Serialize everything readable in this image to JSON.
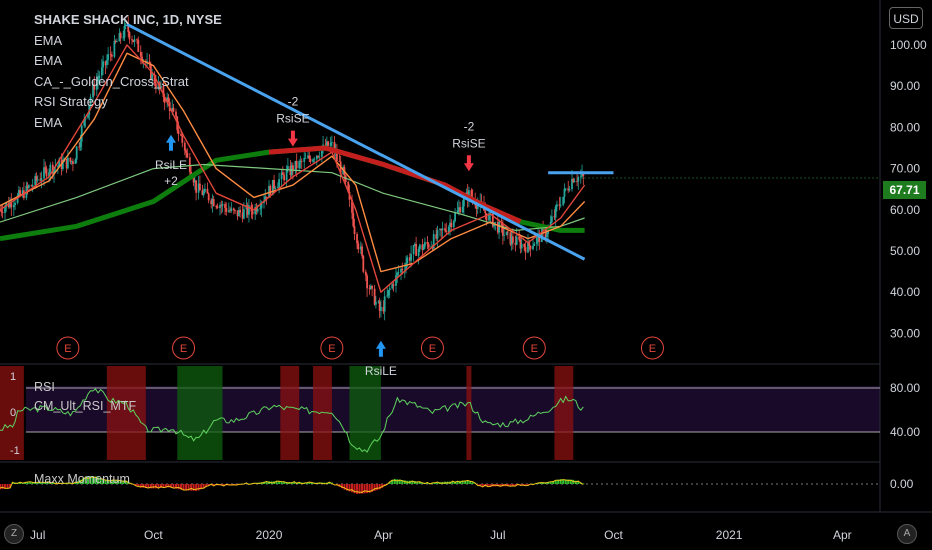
{
  "header": {
    "title": "SHAKE SHACK INC, 1D, NYSE",
    "indicators": [
      "EMA",
      "EMA",
      "CA_-_Golden_Cross_Strat",
      "RSI Strategy",
      "EMA"
    ],
    "currency_button": "USD",
    "last_price": "67.71"
  },
  "panes": {
    "rsi_pane_labels": [
      "RSI",
      "CM_Ult_RSI_MTF"
    ],
    "momentum_pane_label": "Maxx Momentum",
    "rsi_left_ticks": [
      "1",
      "0",
      "-1"
    ],
    "rsi_right_ticks": [
      "80.00",
      "40.00"
    ],
    "momentum_right_ticks": [
      "0.00"
    ]
  },
  "bottom_buttons": {
    "left": "Z",
    "right": "A"
  },
  "colors": {
    "background": "#000000",
    "candle_up": "#26a69a",
    "candle_down": "#ef5350",
    "trendline": "#4aa3ef",
    "ema_sma200": "#c41f1f",
    "ema_green": "#0d7d0d",
    "rsi_line": "#5fd35f",
    "signal_short": "#f23645",
    "signal_long": "#2196f3",
    "price_tag": "#1e7b1e"
  },
  "chart_data": {
    "type": "line",
    "title": "SHAKE SHACK INC, 1D, NYSE",
    "xlabel": "",
    "ylabel": "",
    "x_ticks": [
      "Jul",
      "Oct",
      "2020",
      "Apr",
      "Jul",
      "Oct",
      "2021",
      "Apr"
    ],
    "y_ticks": [
      "100.00",
      "90.00",
      "80.00",
      "70.00",
      "60.00",
      "50.00",
      "40.00",
      "30.00"
    ],
    "ylim": [
      25,
      108
    ],
    "x_range": [
      "2019-06",
      "2021-05"
    ],
    "grid": false,
    "series": [
      {
        "kind": "price",
        "x": [
          "2019-06-01",
          "2019-06-20",
          "2019-07-10",
          "2019-07-30",
          "2019-08-15",
          "2019-09-01",
          "2019-09-10",
          "2019-09-20",
          "2019-10-01",
          "2019-10-15",
          "2019-10-25",
          "2019-11-05",
          "2019-11-20",
          "2019-12-05",
          "2019-12-20",
          "2020-01-05",
          "2020-01-20",
          "2020-02-05",
          "2020-02-20",
          "2020-03-01",
          "2020-03-10",
          "2020-03-20",
          "2020-03-30",
          "2020-04-10",
          "2020-04-25",
          "2020-05-10",
          "2020-05-25",
          "2020-06-08",
          "2020-06-25",
          "2020-07-10",
          "2020-07-25",
          "2020-08-10",
          "2020-08-20",
          "2020-08-30",
          "2020-09-08"
        ],
        "values": [
          60,
          64,
          70,
          72,
          90,
          100,
          104,
          99,
          92,
          85,
          76,
          65,
          62,
          59,
          60,
          66,
          70,
          73,
          76,
          68,
          55,
          42,
          35,
          43,
          50,
          52,
          57,
          64,
          58,
          53,
          51,
          55,
          62,
          68,
          67.71
        ]
      },
      {
        "name": "EMA",
        "kind": "ema-fast",
        "x": [
          "2019-06-01",
          "2019-07-10",
          "2019-08-15",
          "2019-09-10",
          "2019-10-01",
          "2019-10-25",
          "2019-11-20",
          "2019-12-20",
          "2020-01-20",
          "2020-02-20",
          "2020-03-10",
          "2020-03-30",
          "2020-04-25",
          "2020-05-25",
          "2020-06-25",
          "2020-07-25",
          "2020-08-20",
          "2020-09-08"
        ],
        "values": [
          60,
          68,
          86,
          100,
          93,
          78,
          64,
          60,
          68,
          74,
          60,
          40,
          47,
          55,
          59,
          52,
          58,
          66
        ]
      },
      {
        "name": "EMA",
        "kind": "ema-mid",
        "x": [
          "2019-06-01",
          "2019-07-10",
          "2019-08-15",
          "2019-09-10",
          "2019-10-01",
          "2019-10-25",
          "2019-11-20",
          "2019-12-20",
          "2020-01-20",
          "2020-02-20",
          "2020-03-10",
          "2020-03-30",
          "2020-04-25",
          "2020-05-25",
          "2020-06-25",
          "2020-07-25",
          "2020-08-20",
          "2020-09-08"
        ],
        "values": [
          61,
          67,
          82,
          98,
          95,
          84,
          70,
          63,
          66,
          73,
          66,
          45,
          47,
          53,
          57,
          53,
          56,
          62
        ]
      },
      {
        "kind": "ma-slow",
        "x": [
          "2019-06-01",
          "2019-08-01",
          "2019-10-01",
          "2019-11-10",
          "2020-01-01",
          "2020-02-20",
          "2020-04-01",
          "2020-06-01",
          "2020-07-15",
          "2020-08-20",
          "2020-09-08"
        ],
        "values": [
          57,
          63,
          70,
          71,
          70,
          69,
          64,
          59,
          55,
          56,
          58
        ]
      },
      {
        "kind": "golden-cross",
        "x": [
          "2019-06-01",
          "2019-08-01",
          "2019-10-01",
          "2019-11-20",
          "2020-01-01",
          "2020-02-15",
          "2020-04-01",
          "2020-05-20",
          "2020-06-20",
          "2020-07-20",
          "2020-08-20",
          "2020-09-08"
        ],
        "values": [
          53,
          56,
          62,
          72,
          74,
          75,
          71,
          66,
          61,
          57,
          55,
          55
        ]
      }
    ],
    "trendline": {
      "x": [
        "2019-09-10",
        "2020-09-08"
      ],
      "y": [
        105,
        48
      ]
    },
    "resistance": {
      "x": [
        "2020-08-10",
        "2020-10-01"
      ],
      "y": [
        69,
        69
      ]
    },
    "signals": [
      {
        "label": "RsiLE",
        "qty": "+2",
        "x": "2019-10-15",
        "direction": "long"
      },
      {
        "label": "RsiSE",
        "qty": "-2",
        "x": "2020-01-20",
        "direction": "short"
      },
      {
        "label": "RsiLE",
        "x": "2020-03-30",
        "direction": "long"
      },
      {
        "label": "RsiSE",
        "qty": "-2",
        "x": "2020-06-08",
        "direction": "short"
      }
    ],
    "earnings_marker_label": "E",
    "earnings_x": [
      "2019-07-25",
      "2019-10-25",
      "2020-02-20",
      "2020-05-10",
      "2020-07-30",
      "2020-11-01"
    ]
  }
}
